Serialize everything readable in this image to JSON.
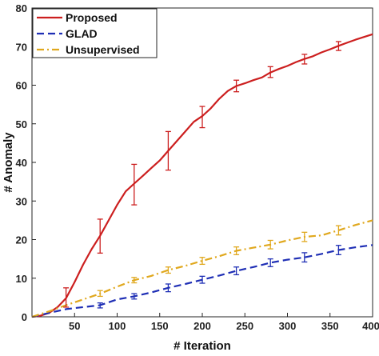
{
  "chart_data": {
    "type": "line",
    "title": "",
    "xlabel": "# Iteration",
    "ylabel": "# Anomaly",
    "xlim": [
      0,
      400
    ],
    "ylim": [
      0,
      80
    ],
    "xticks": [
      50,
      100,
      150,
      200,
      250,
      300,
      350,
      400
    ],
    "yticks": [
      0,
      10,
      20,
      30,
      40,
      50,
      60,
      70,
      80
    ],
    "grid": false,
    "legend_position": "top-left",
    "series": [
      {
        "name": "Proposed",
        "color": "#cc1f1f",
        "style": "solid",
        "x": [
          0,
          10,
          20,
          30,
          40,
          50,
          60,
          70,
          80,
          90,
          100,
          110,
          120,
          130,
          140,
          150,
          160,
          170,
          180,
          190,
          200,
          210,
          220,
          230,
          240,
          250,
          260,
          270,
          280,
          290,
          300,
          310,
          320,
          330,
          340,
          350,
          360,
          370,
          380,
          390,
          400
        ],
        "y": [
          0,
          0.3,
          1.0,
          2.5,
          4.8,
          9.0,
          13.5,
          17.5,
          21.0,
          25.0,
          29.0,
          32.5,
          34.5,
          36.5,
          38.5,
          40.5,
          43.0,
          45.5,
          48.0,
          50.5,
          52.0,
          54.0,
          56.5,
          58.5,
          59.8,
          60.5,
          61.3,
          62.0,
          63.3,
          64.2,
          65.0,
          66.0,
          66.8,
          67.5,
          68.5,
          69.3,
          70.2,
          71.0,
          71.8,
          72.5,
          73.2
        ],
        "errorbars": [
          {
            "x": 40,
            "y": 4.8,
            "low": 2.5,
            "high": 7.5
          },
          {
            "x": 80,
            "y": 21.0,
            "low": 16.5,
            "high": 25.3
          },
          {
            "x": 120,
            "y": 34.5,
            "low": 29.0,
            "high": 39.5
          },
          {
            "x": 160,
            "y": 43.0,
            "low": 38.0,
            "high": 48.0
          },
          {
            "x": 200,
            "y": 52.0,
            "low": 49.0,
            "high": 54.5
          },
          {
            "x": 240,
            "y": 59.8,
            "low": 58.3,
            "high": 61.3
          },
          {
            "x": 280,
            "y": 63.3,
            "low": 62.0,
            "high": 64.8
          },
          {
            "x": 320,
            "y": 66.8,
            "low": 65.5,
            "high": 68.0
          },
          {
            "x": 360,
            "y": 70.2,
            "low": 69.0,
            "high": 71.3
          }
        ]
      },
      {
        "name": "GLAD",
        "color": "#1f2fb5",
        "style": "dashed",
        "x": [
          0,
          20,
          40,
          60,
          80,
          100,
          120,
          140,
          160,
          180,
          200,
          220,
          240,
          260,
          280,
          300,
          320,
          340,
          360,
          380,
          400
        ],
        "y": [
          0,
          1.0,
          2.0,
          2.5,
          3.0,
          4.5,
          5.3,
          6.3,
          7.5,
          8.5,
          9.6,
          10.7,
          11.9,
          12.9,
          14.0,
          14.8,
          15.4,
          16.3,
          17.3,
          18.0,
          18.6
        ],
        "errorbars": [
          {
            "x": 80,
            "y": 3.0,
            "low": 2.3,
            "high": 3.6
          },
          {
            "x": 120,
            "y": 5.3,
            "low": 4.6,
            "high": 6.0
          },
          {
            "x": 160,
            "y": 7.5,
            "low": 6.5,
            "high": 8.5
          },
          {
            "x": 200,
            "y": 9.6,
            "low": 8.7,
            "high": 10.5
          },
          {
            "x": 240,
            "y": 11.9,
            "low": 10.9,
            "high": 12.9
          },
          {
            "x": 280,
            "y": 14.0,
            "low": 13.0,
            "high": 15.0
          },
          {
            "x": 320,
            "y": 15.4,
            "low": 14.2,
            "high": 16.6
          },
          {
            "x": 360,
            "y": 17.3,
            "low": 16.1,
            "high": 18.5
          }
        ]
      },
      {
        "name": "Unsupervised",
        "color": "#e0a81e",
        "style": "dashdot",
        "x": [
          0,
          20,
          40,
          60,
          80,
          100,
          120,
          140,
          160,
          180,
          200,
          220,
          240,
          260,
          280,
          300,
          320,
          340,
          360,
          380,
          400
        ],
        "y": [
          0,
          1.4,
          3.0,
          4.5,
          6.0,
          7.8,
          9.5,
          10.6,
          12.1,
          13.2,
          14.5,
          15.7,
          17.1,
          17.9,
          18.7,
          19.8,
          20.7,
          21.1,
          22.4,
          23.8,
          25.0
        ],
        "errorbars": [
          {
            "x": 80,
            "y": 6.0,
            "low": 5.3,
            "high": 6.8
          },
          {
            "x": 120,
            "y": 9.5,
            "low": 8.8,
            "high": 10.2
          },
          {
            "x": 160,
            "y": 12.1,
            "low": 11.3,
            "high": 12.9
          },
          {
            "x": 200,
            "y": 14.5,
            "low": 13.6,
            "high": 15.4
          },
          {
            "x": 240,
            "y": 17.1,
            "low": 16.1,
            "high": 18.1
          },
          {
            "x": 280,
            "y": 18.7,
            "low": 17.6,
            "high": 19.8
          },
          {
            "x": 320,
            "y": 20.7,
            "low": 19.5,
            "high": 21.9
          },
          {
            "x": 360,
            "y": 22.4,
            "low": 21.2,
            "high": 23.6
          }
        ]
      }
    ]
  }
}
